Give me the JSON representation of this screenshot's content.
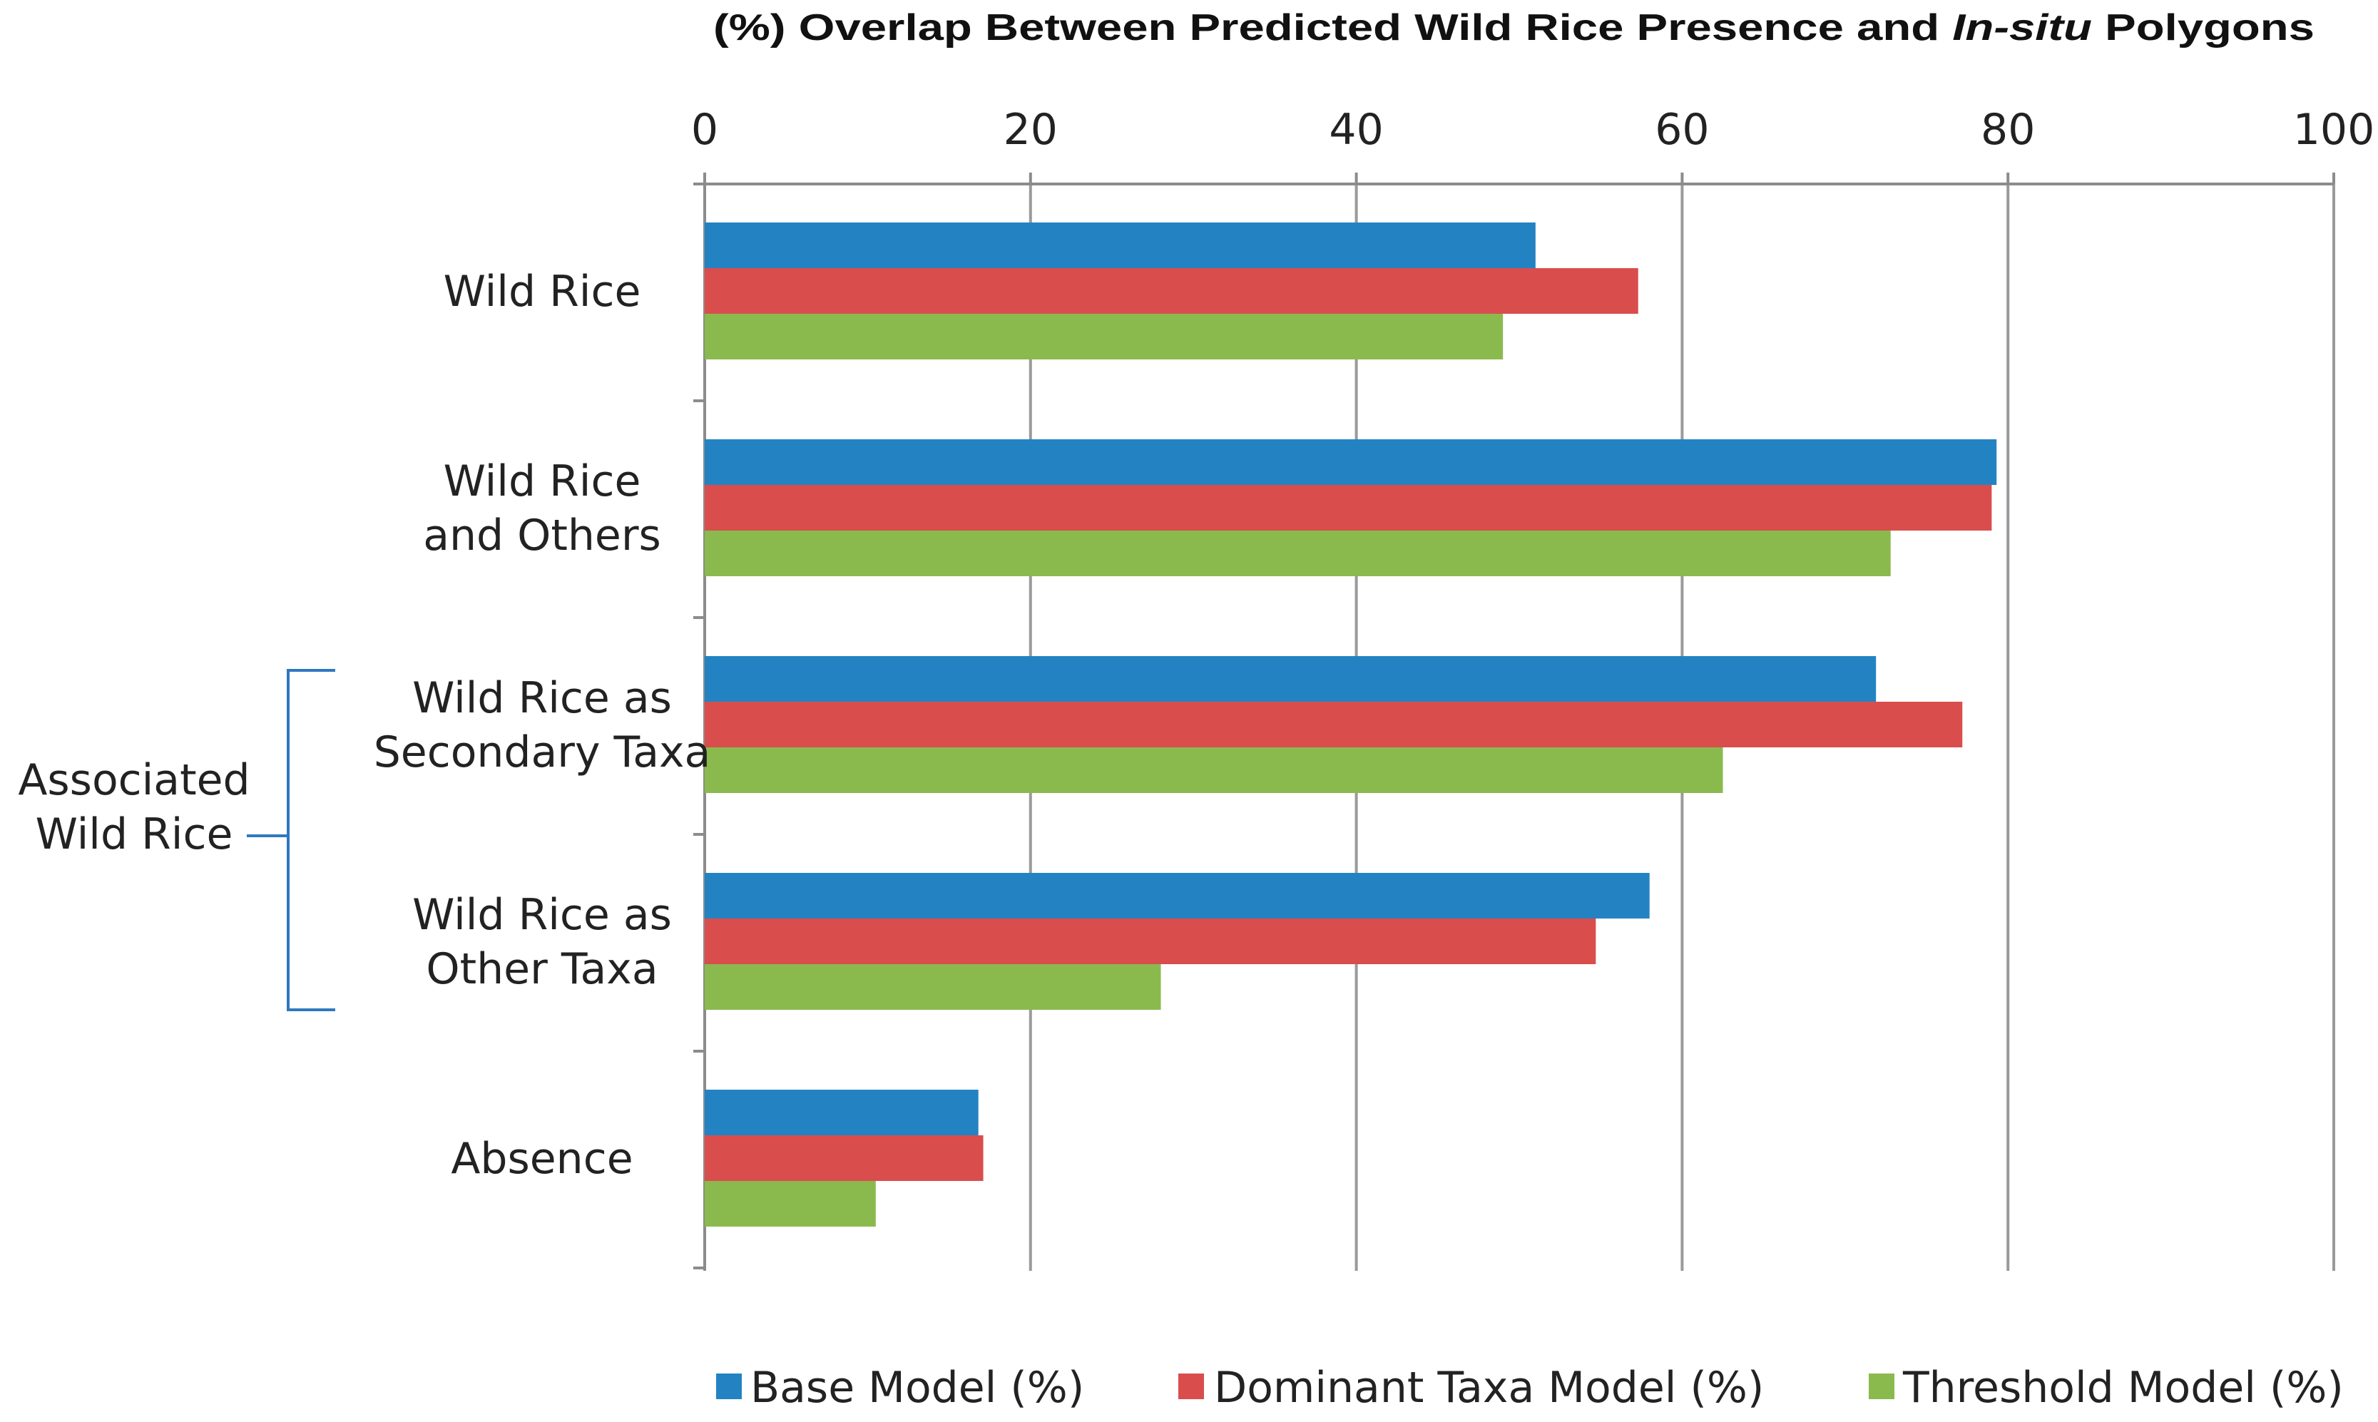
{
  "chart_data": {
    "type": "bar",
    "orientation": "horizontal",
    "title": "(%) Overlap Between Predicted Wild Rice Presence and In-situ Polygons",
    "title_parts": {
      "before": "(%) Overlap Between Predicted Wild Rice Presence and ",
      "italic": "In-situ",
      "after": " Polygons"
    },
    "xaxis": {
      "position": "top",
      "min": 0,
      "max": 100,
      "ticks": [
        0,
        20,
        40,
        60,
        80,
        100
      ],
      "tick_labels": [
        "0",
        "20",
        "40",
        "60",
        "80",
        "100"
      ],
      "gridlines": true
    },
    "categories": [
      "Wild Rice",
      "Wild Rice and Others",
      "Wild Rice as Secondary Taxa",
      "Wild Rice as Other Taxa",
      "Absence"
    ],
    "category_label_lines": [
      [
        "Wild Rice"
      ],
      [
        "Wild Rice",
        "and Others"
      ],
      [
        "Wild Rice as",
        "Secondary Taxa"
      ],
      [
        "Wild Rice as",
        "Other Taxa"
      ],
      [
        "Absence"
      ]
    ],
    "series": [
      {
        "name": "Base Model (%)",
        "color": "#2383c2",
        "values": [
          51,
          79.3,
          71.9,
          58,
          16.8
        ]
      },
      {
        "name": "Dominant Taxa Model (%)",
        "color": "#d94d4d",
        "values": [
          57.3,
          79,
          77.2,
          54.7,
          17.1
        ]
      },
      {
        "name": "Threshold Model (%)",
        "color": "#8aba4e",
        "values": [
          49,
          72.8,
          62.5,
          28,
          10.5
        ]
      }
    ],
    "group_annotation": {
      "lines": [
        "Associated",
        "Wild Rice"
      ],
      "spans_categories": [
        "Wild Rice as Secondary Taxa",
        "Wild Rice as Other Taxa"
      ],
      "bracket_color": "#2f78c0"
    },
    "legend": {
      "position": "bottom",
      "entries": [
        "Base Model (%)",
        "Dominant Taxa Model (%)",
        "Threshold Model (%)"
      ]
    },
    "axis_color": "#8c8c8c",
    "grid_color": "#9a9a9a"
  }
}
